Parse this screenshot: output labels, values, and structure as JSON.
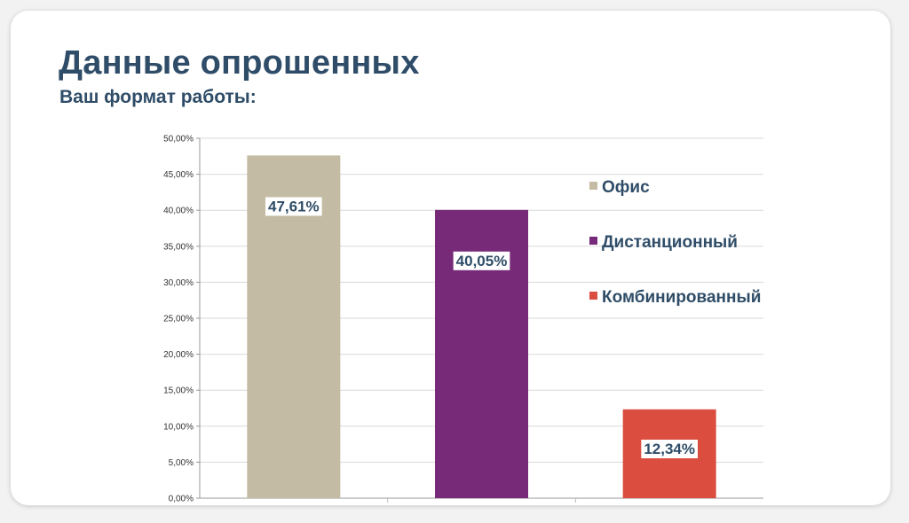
{
  "slide": {
    "title": "Данные опрошенных",
    "subtitle": "Ваш формат работы:"
  },
  "chart_data": {
    "type": "bar",
    "title": "",
    "xlabel": "",
    "ylabel": "",
    "categories": [
      "Офис",
      "Дистанционный",
      "Комбинированный"
    ],
    "values": [
      47.61,
      40.05,
      12.34
    ],
    "data_labels": [
      "47,61%",
      "40,05%",
      "12,34%"
    ],
    "colors": [
      "#c3bba3",
      "#772a78",
      "#db4e3f"
    ],
    "ylim": [
      0,
      50
    ],
    "ytick_step": 5,
    "ytick_labels": [
      "0,00%",
      "5,00%",
      "10,00%",
      "15,00%",
      "20,00%",
      "25,00%",
      "30,00%",
      "35,00%",
      "40,00%",
      "45,00%",
      "50,00%"
    ],
    "grid": true,
    "legend_position": "right"
  }
}
